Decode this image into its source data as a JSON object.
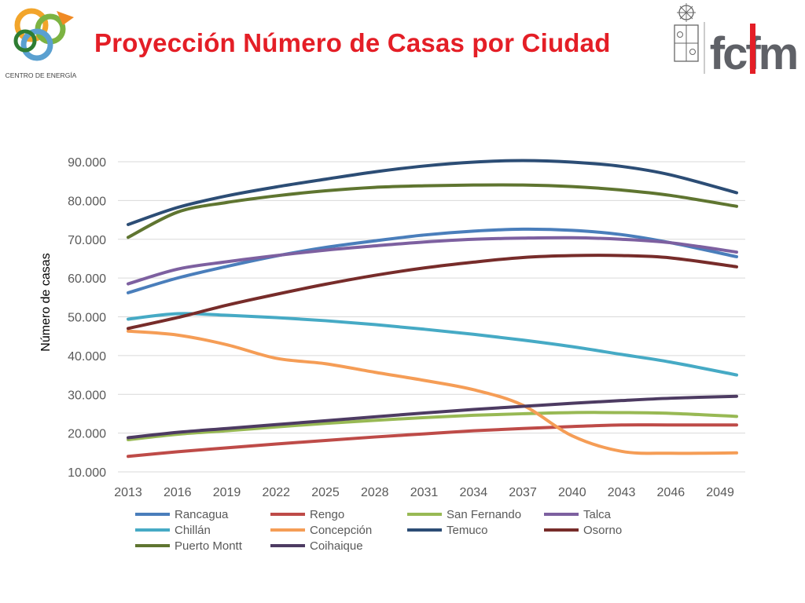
{
  "header": {
    "title": "Proyección Número de Casas por Ciudad",
    "left_logo_text": "CENTRO DE ENERGÍA",
    "right_logo_text": "fcfm"
  },
  "chart_data": {
    "type": "line",
    "title": "",
    "xlabel": "",
    "ylabel": "Número de casas",
    "xlim": [
      2013,
      2050
    ],
    "ylim": [
      10000,
      90000
    ],
    "x_ticks": [
      "2013",
      "2016",
      "2019",
      "2022",
      "2025",
      "2028",
      "2031",
      "2034",
      "2037",
      "2040",
      "2043",
      "2046",
      "2049"
    ],
    "y_ticks": [
      "10.000",
      "20.000",
      "30.000",
      "40.000",
      "50.000",
      "60.000",
      "70.000",
      "80.000",
      "90.000"
    ],
    "y_tick_values": [
      10000,
      20000,
      30000,
      40000,
      50000,
      60000,
      70000,
      80000,
      90000
    ],
    "x_tick_values": [
      2013,
      2016,
      2019,
      2022,
      2025,
      2028,
      2031,
      2034,
      2037,
      2040,
      2043,
      2046,
      2049
    ],
    "grid": true,
    "legend_position": "bottom",
    "x": [
      2013,
      2016,
      2019,
      2022,
      2025,
      2028,
      2031,
      2034,
      2037,
      2040,
      2043,
      2046,
      2050
    ],
    "series": [
      {
        "name": "Rancagua",
        "color": "#4a7ebb",
        "values": [
          56200,
          60000,
          63000,
          65700,
          67900,
          69600,
          71100,
          72100,
          72600,
          72300,
          71200,
          69100,
          65500
        ]
      },
      {
        "name": "Rengo",
        "color": "#be4b48",
        "values": [
          14000,
          15200,
          16200,
          17200,
          18100,
          19000,
          19800,
          20600,
          21200,
          21700,
          22100,
          22100,
          22100
        ]
      },
      {
        "name": "San Fernando",
        "color": "#98b954",
        "values": [
          18300,
          19700,
          20600,
          21600,
          22500,
          23300,
          24000,
          24600,
          25000,
          25300,
          25300,
          25100,
          24300
        ]
      },
      {
        "name": "Talca",
        "color": "#7d60a0",
        "values": [
          58500,
          62300,
          64200,
          65800,
          67200,
          68300,
          69300,
          70000,
          70300,
          70400,
          70000,
          69100,
          66700
        ]
      },
      {
        "name": "Chillán",
        "color": "#46aac5",
        "values": [
          49400,
          50800,
          50400,
          49800,
          49000,
          48000,
          46800,
          45500,
          44000,
          42300,
          40300,
          38300,
          35000
        ]
      },
      {
        "name": "Concepción",
        "color": "#f59d56",
        "values": [
          46300,
          45300,
          42800,
          39300,
          37900,
          35700,
          33600,
          31200,
          27200,
          19300,
          15300,
          14800,
          14900
        ]
      },
      {
        "name": "Temuco",
        "color": "#2c4d75",
        "values": [
          73800,
          78200,
          81200,
          83500,
          85500,
          87400,
          88900,
          89900,
          90300,
          89900,
          88800,
          86600,
          82000
        ]
      },
      {
        "name": "Osorno",
        "color": "#772c2a",
        "values": [
          47000,
          49800,
          53000,
          55800,
          58400,
          60700,
          62600,
          64100,
          65300,
          65800,
          65800,
          65200,
          62900
        ]
      },
      {
        "name": "Puerto Montt",
        "color": "#5f7530",
        "values": [
          70500,
          77000,
          79500,
          81200,
          82500,
          83400,
          83800,
          84000,
          84000,
          83600,
          82700,
          81300,
          78500
        ]
      },
      {
        "name": "Coihaique",
        "color": "#4d3b62",
        "values": [
          18800,
          20200,
          21200,
          22200,
          23200,
          24200,
          25200,
          26100,
          26900,
          27700,
          28400,
          29000,
          29500
        ]
      }
    ]
  }
}
